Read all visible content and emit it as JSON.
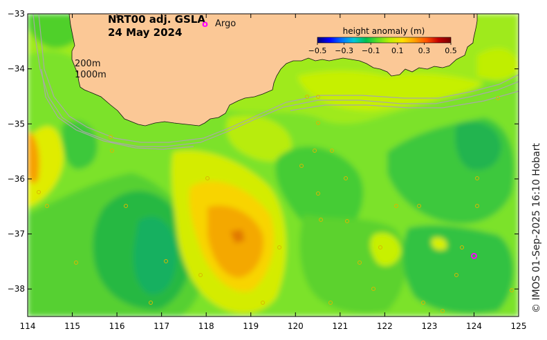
{
  "title": {
    "line1": "NRT00 adj. GSLA",
    "line2": "24 May 2024"
  },
  "argo_legend": {
    "symbol": "o",
    "label": "Argo"
  },
  "colorbar": {
    "title": "height anomaly (m)",
    "ticks": [
      "−0.5",
      "−0.3",
      "−0.1",
      "0.1",
      "0.3",
      "0.5"
    ],
    "stops": [
      "#00007a",
      "#0000ff",
      "#0070ff",
      "#00c8d8",
      "#00c050",
      "#60e020",
      "#c0f000",
      "#ffe000",
      "#ffa000",
      "#ff5000",
      "#c00000",
      "#7a0000"
    ]
  },
  "contour_labels": {
    "shallow": "200m",
    "deep": "1000m"
  },
  "x_ticks": [
    "114",
    "115",
    "116",
    "117",
    "118",
    "119",
    "120",
    "121",
    "122",
    "123",
    "124",
    "125"
  ],
  "y_ticks": [
    "−33",
    "−34",
    "−35",
    "−36",
    "−37",
    "−38"
  ],
  "credit": "© IMOS 01-Sep-2025 16:10 Hobart",
  "colors": {
    "land": "#fbc896",
    "argo": "#ff00ff",
    "bathymetry": "#a8a8a8"
  },
  "argo_floats": [
    {
      "lon": 124.0,
      "lat": -37.4
    }
  ]
}
